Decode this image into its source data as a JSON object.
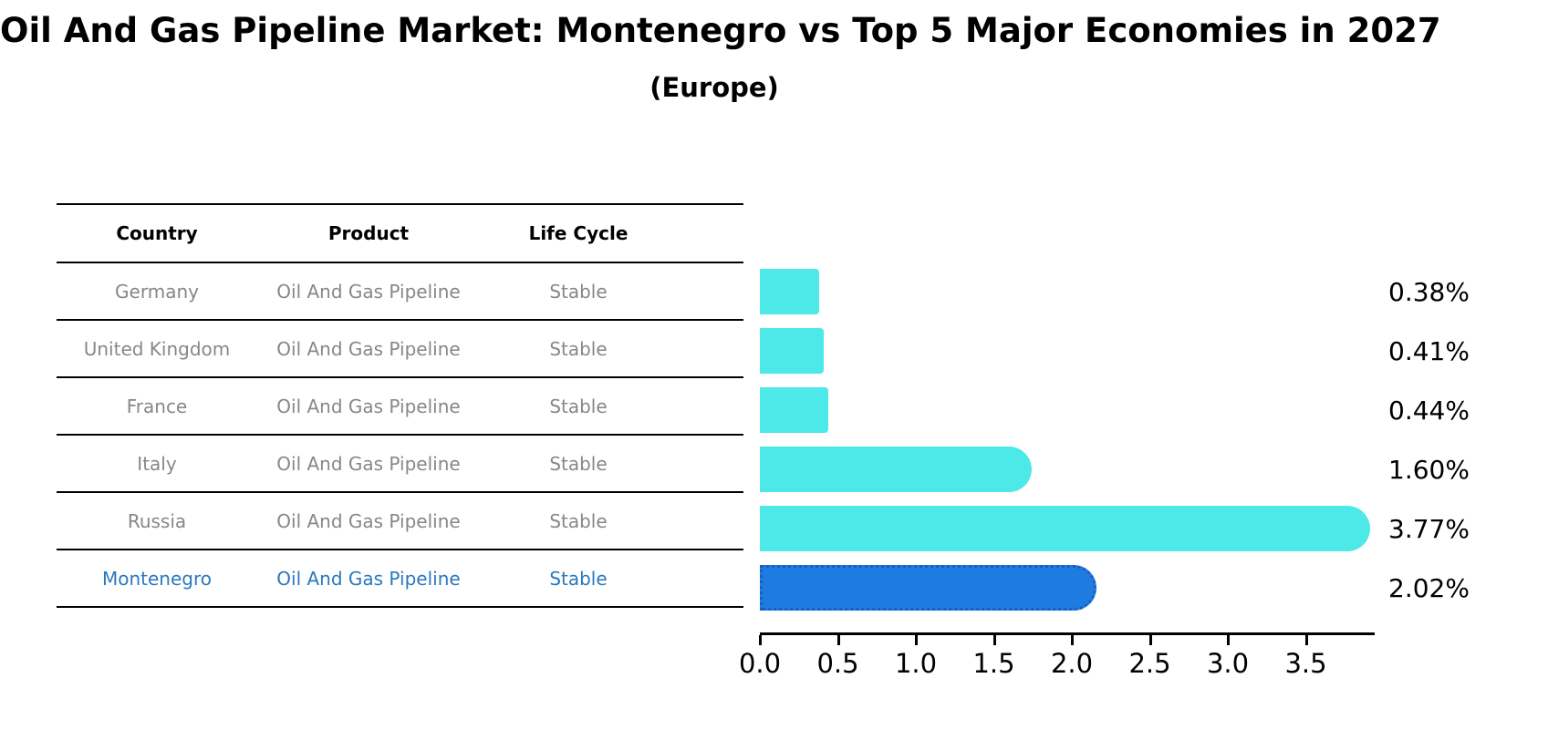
{
  "title": "Oil And Gas Pipeline Market: Montenegro vs Top 5 Major Economies in 2027",
  "subtitle": "(Europe)",
  "table": {
    "headers": {
      "country": "Country",
      "product": "Product",
      "life_cycle": "Life Cycle"
    },
    "rows": [
      {
        "country": "Germany",
        "product": "Oil And Gas Pipeline",
        "life_cycle": "Stable",
        "highlight": false
      },
      {
        "country": "United Kingdom",
        "product": "Oil And Gas Pipeline",
        "life_cycle": "Stable",
        "highlight": false
      },
      {
        "country": "France",
        "product": "Oil And Gas Pipeline",
        "life_cycle": "Stable",
        "highlight": false
      },
      {
        "country": "Italy",
        "product": "Oil And Gas Pipeline",
        "life_cycle": "Stable",
        "highlight": false
      },
      {
        "country": "Russia",
        "product": "Oil And Gas Pipeline",
        "life_cycle": "Stable",
        "highlight": false
      },
      {
        "country": "Montenegro",
        "product": "Oil And Gas Pipeline",
        "life_cycle": "Stable",
        "highlight": true
      }
    ]
  },
  "chart_data": {
    "type": "bar",
    "orientation": "horizontal",
    "title": "Oil And Gas Pipeline Market: Montenegro vs Top 5 Major Economies in 2027",
    "subtitle": "(Europe)",
    "categories": [
      "Germany",
      "United Kingdom",
      "France",
      "Italy",
      "Russia",
      "Montenegro"
    ],
    "values": [
      0.38,
      0.41,
      0.44,
      1.6,
      3.77,
      2.02
    ],
    "labels": [
      "0.38%",
      "0.41%",
      "0.44%",
      "1.60%",
      "3.77%",
      "2.02%"
    ],
    "xticks": [
      0.0,
      0.5,
      1.0,
      1.5,
      2.0,
      2.5,
      3.0,
      3.5
    ],
    "xtick_labels": [
      "0.0",
      "0.5",
      "1.0",
      "1.5",
      "2.0",
      "2.5",
      "3.0",
      "3.5"
    ],
    "xlim": [
      0,
      3.94
    ],
    "grid": false,
    "legend": false,
    "bar_color": "#4de8e8",
    "highlight_index": 5,
    "highlight_color": "#1e7ce0",
    "highlight_edge_color": "#1a5fc0",
    "highlight_edge_style": "dotted"
  }
}
